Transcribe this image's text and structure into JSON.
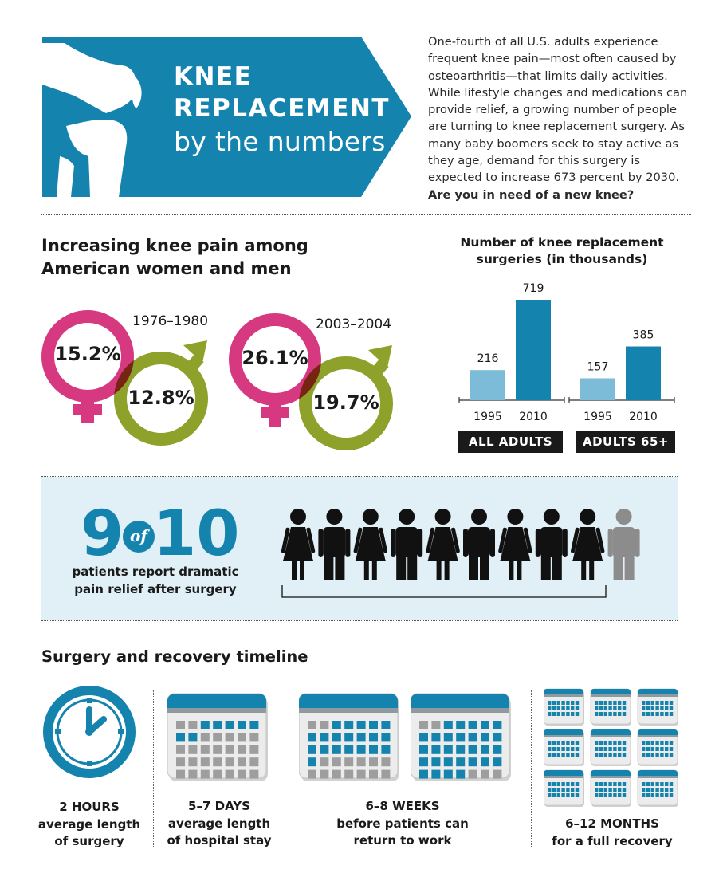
{
  "header": {
    "title_line1": "KNEE",
    "title_line2": "REPLACEMENT",
    "subtitle": "by the numbers",
    "intro_text": "One-fourth of all U.S. adults experience frequent knee pain—most often caused by osteoarthritis—that limits daily activities. While lifestyle changes and medications can provide relief, a growing number of people are turning to knee replacement surgery. As many baby boomers seek to stay active as they age, demand for this surgery is expected to increase 673 percent by 2030.",
    "intro_question": "Are you in need of a new knee?"
  },
  "pain": {
    "heading_line1": "Increasing knee pain among",
    "heading_line2": "American women and men",
    "periods": [
      {
        "years": "1976–1980",
        "women": "15.2%",
        "men": "12.8%"
      },
      {
        "years": "2003–2004",
        "women": "26.1%",
        "men": "19.7%"
      }
    ]
  },
  "chart_data": {
    "type": "bar",
    "title": "Number of knee replacement surgeries (in thousands)",
    "groups": [
      {
        "name": "ALL ADULTS",
        "categories": [
          "1995",
          "2010"
        ],
        "values": [
          216,
          719
        ]
      },
      {
        "name": "ADULTS 65+",
        "categories": [
          "1995",
          "2010"
        ],
        "values": [
          157,
          385
        ]
      }
    ],
    "colors": {
      "1995": "#7dbcd9",
      "2010": "#1483ae"
    },
    "ylim": [
      0,
      719
    ]
  },
  "relief": {
    "nine": "9",
    "of": "of",
    "ten": "10",
    "caption_line1": "patients report dramatic",
    "caption_line2": "pain relief after surgery",
    "figures": [
      "woman",
      "man",
      "woman",
      "man",
      "woman",
      "man",
      "woman",
      "man",
      "woman",
      "man-grey"
    ]
  },
  "timeline": {
    "heading": "Surgery and recovery timeline",
    "items": [
      {
        "icon": "clock-icon",
        "line1": "2 HOURS",
        "line2": "average length",
        "line3": "of surgery"
      },
      {
        "icon": "calendar-icon",
        "line1": "5–7 DAYS",
        "line2": "average length",
        "line3": "of hospital stay"
      },
      {
        "icon": "calendar-icon",
        "line1": "6–8 WEEKS",
        "line2": "before patients can",
        "line3": "return to work"
      },
      {
        "icon": "calendar-grid-icon",
        "line1": "6–12 MONTHS",
        "line2": "for a full recovery"
      }
    ]
  },
  "colors": {
    "blue": "#1483ae",
    "light_blue": "#7dbcd9",
    "pink": "#d6397f",
    "olive": "#8ea12a",
    "panel": "#e1f0f6"
  }
}
